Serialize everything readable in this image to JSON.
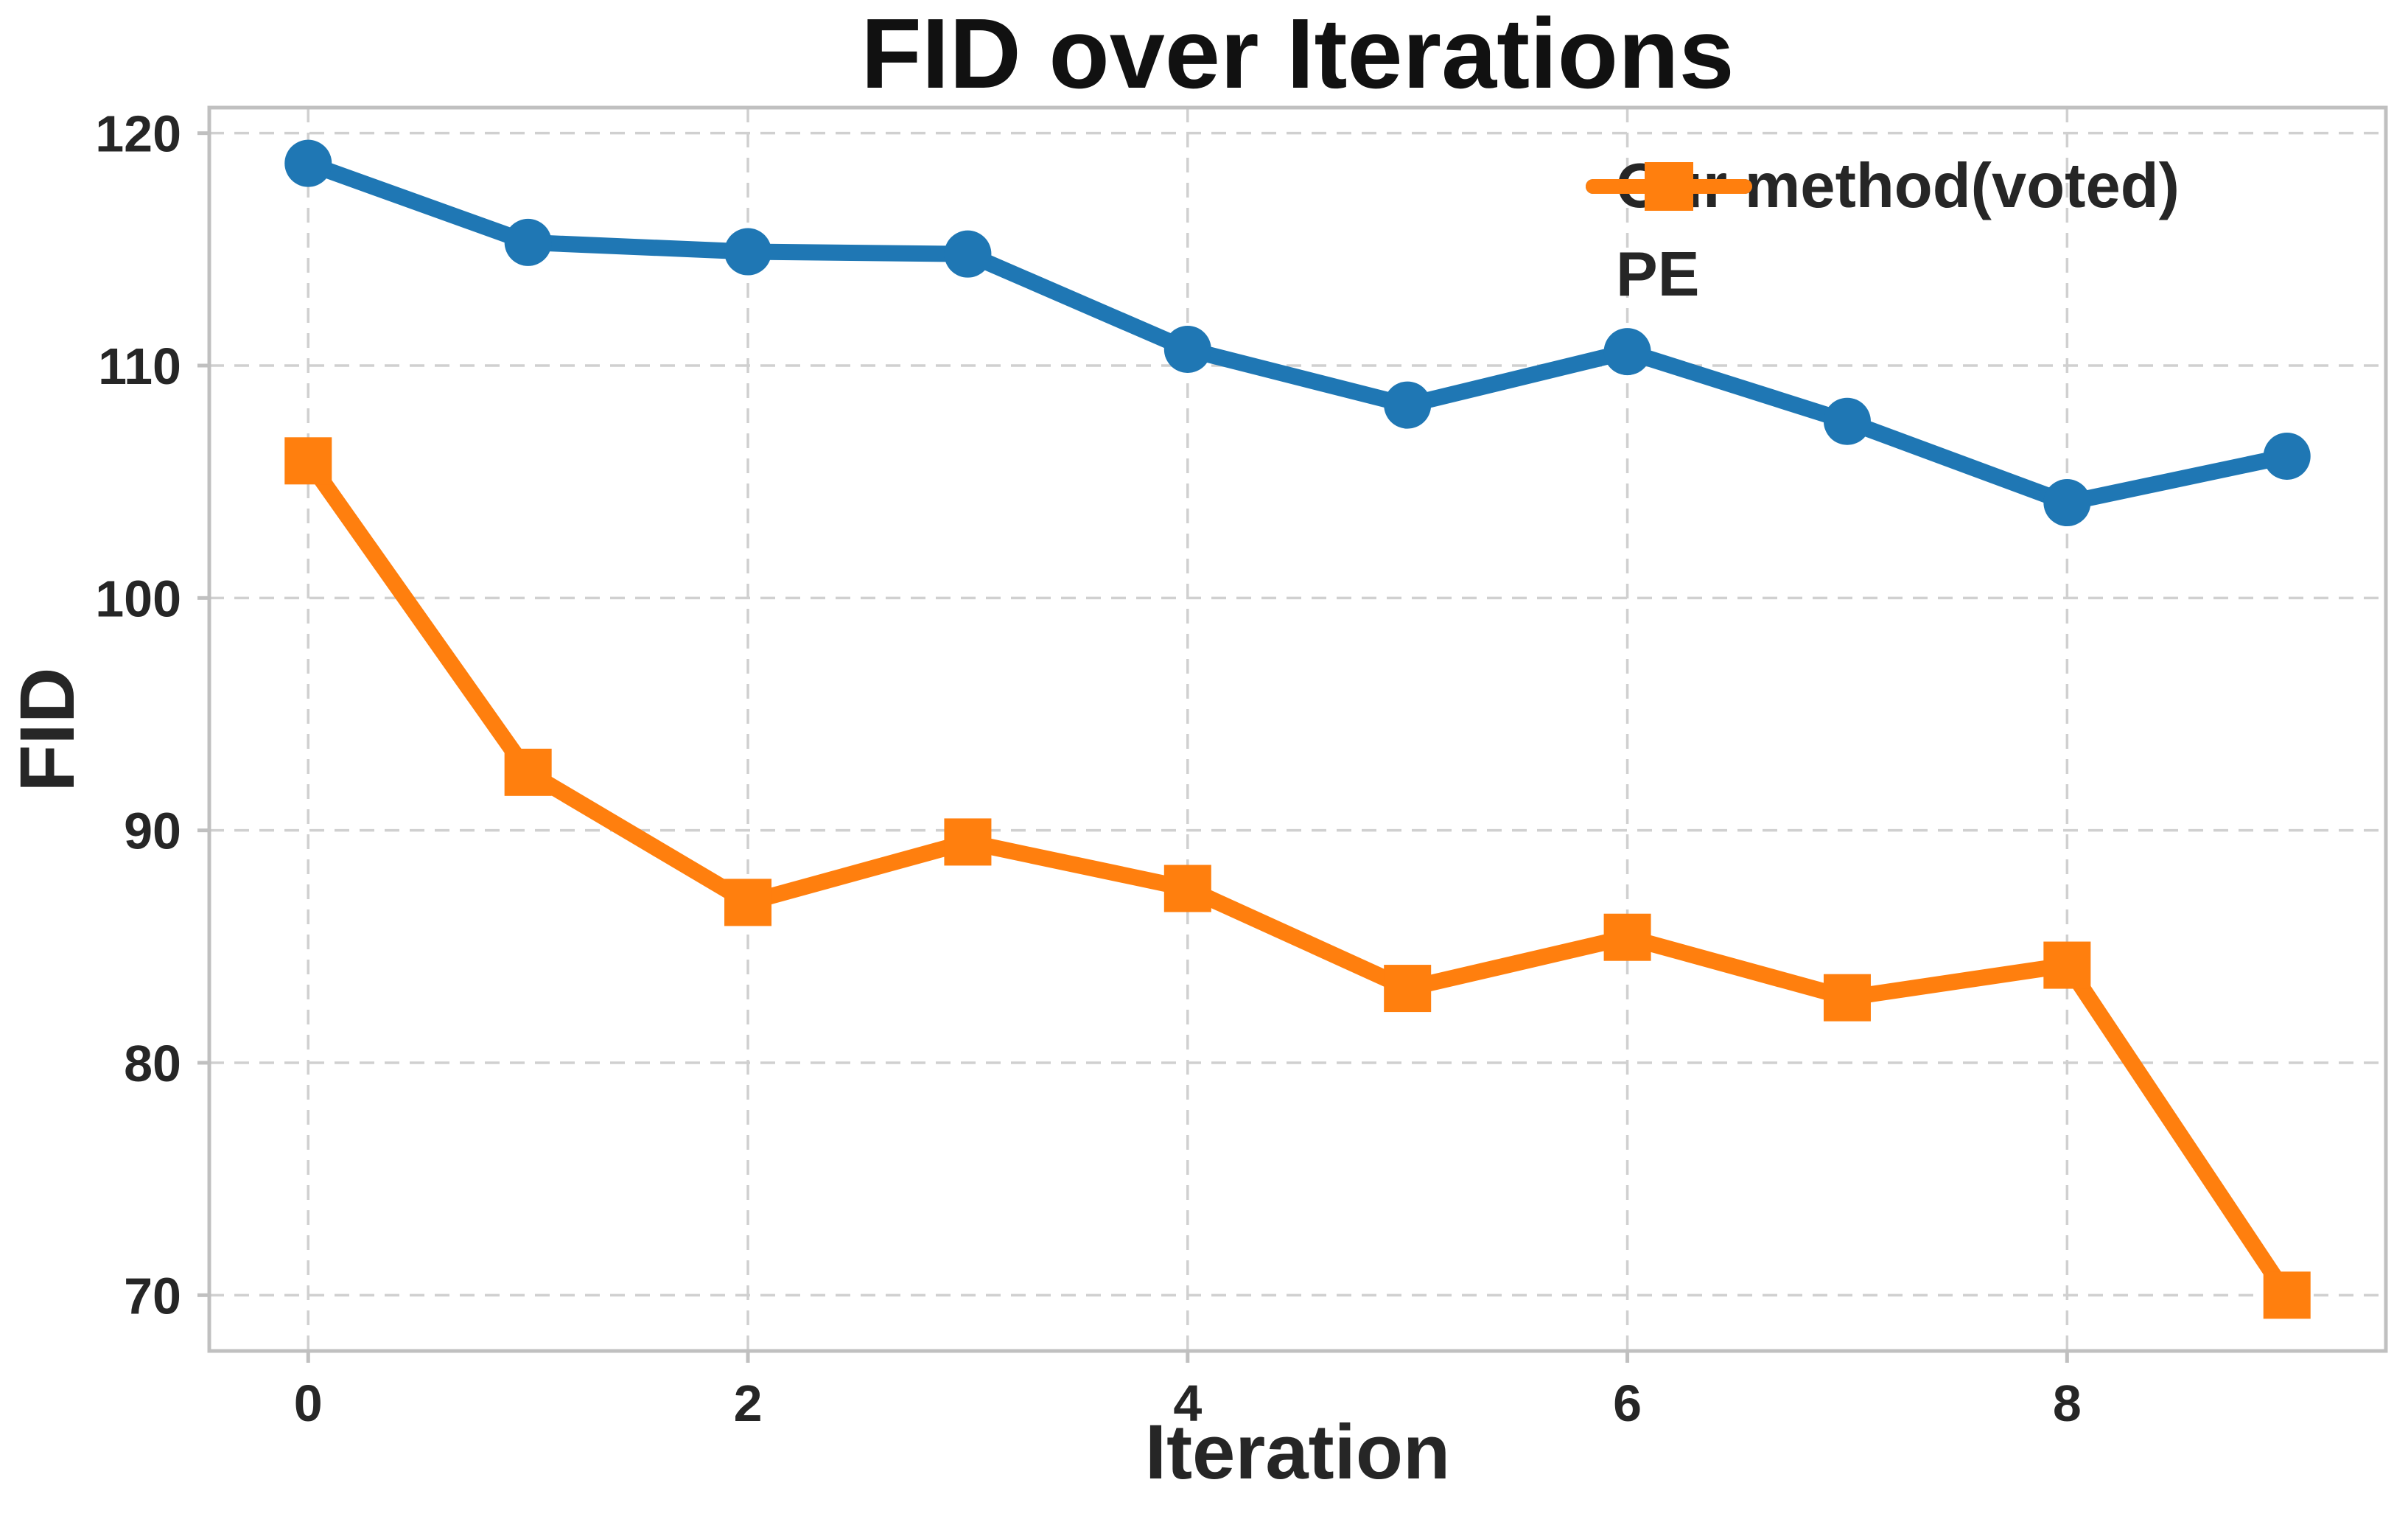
{
  "chart_data": {
    "type": "line",
    "title": "FID over Iterations",
    "xlabel": "Iteration",
    "ylabel": "FID",
    "x": [
      0,
      1,
      2,
      3,
      4,
      5,
      6,
      7,
      8,
      9
    ],
    "series": [
      {
        "name": "Our method(voted)",
        "color": "#1f77b4",
        "marker": "circle",
        "values": [
          118.7,
          115.3,
          114.9,
          114.8,
          110.7,
          108.3,
          110.6,
          107.6,
          104.1,
          106.1
        ]
      },
      {
        "name": "PE",
        "color": "#ff7f0e",
        "marker": "square",
        "values": [
          105.9,
          92.5,
          86.9,
          89.5,
          87.5,
          83.2,
          85.4,
          82.8,
          84.2,
          70.0
        ]
      }
    ],
    "xticks": [
      0,
      2,
      4,
      6,
      8
    ],
    "yticks": [
      70,
      80,
      90,
      100,
      110,
      120
    ],
    "xlim": [
      -0.45,
      9.45
    ],
    "ylim": [
      67.6,
      121.1
    ],
    "grid": {
      "dashed": true,
      "color": "#d0d0d0",
      "on": true
    },
    "legend_position": "upper right",
    "text_color": "#262626",
    "title_color": "#111111"
  }
}
